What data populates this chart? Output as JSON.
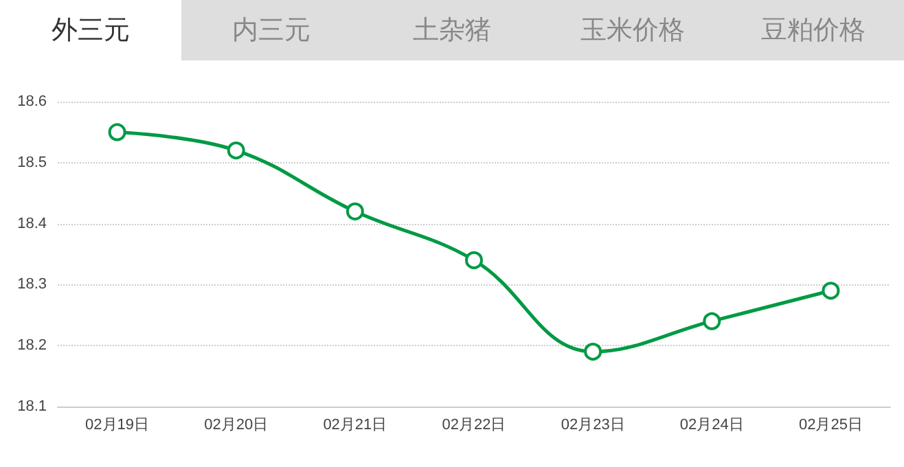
{
  "chart_data": {
    "type": "line",
    "annotations": [
      "外三元",
      "内三元",
      "土杂猪",
      "玉米价格",
      "豆粕价格"
    ],
    "categories": [
      "02月19日",
      "02月20日",
      "02月21日",
      "02月22日",
      "02月23日",
      "02月24日",
      "02月25日"
    ],
    "series": [
      {
        "color": "#009a44",
        "values": [
          18.55,
          18.52,
          18.42,
          18.34,
          18.19,
          18.24,
          18.29
        ]
      }
    ],
    "ylim": [
      18.1,
      18.6
    ],
    "yticks": [
      18.1,
      18.2,
      18.3,
      18.4,
      18.5,
      18.6
    ],
    "grid": "y",
    "marker": "circle",
    "line_style": "solid"
  }
}
